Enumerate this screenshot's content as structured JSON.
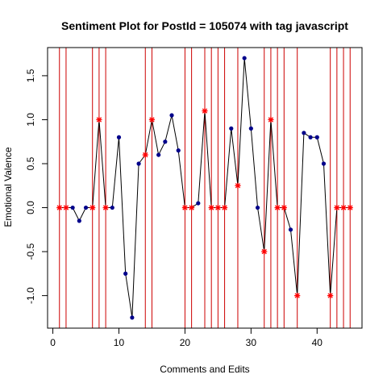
{
  "chart_data": {
    "type": "line",
    "title": "Sentiment Plot for PostId =  105074  with tag  javascript",
    "xlabel": "Comments and Edits",
    "ylabel": "Emotional Valence",
    "xlim": [
      -0.8,
      46.8
    ],
    "ylim": [
      -1.37,
      1.82
    ],
    "xticks": [
      0,
      10,
      20,
      30,
      40
    ],
    "yticks": [
      -1.0,
      -0.5,
      0.0,
      0.5,
      1.0,
      1.5
    ],
    "xtick_labels": [
      "0",
      "10",
      "20",
      "30",
      "40"
    ],
    "ytick_labels": [
      "-1.0",
      "-0.5",
      "0.0",
      "0.5",
      "1.0",
      "1.5"
    ],
    "grid": false,
    "colors": {
      "line": "#000000",
      "comment_point": "#00008b",
      "edit_marker": "#ff0000",
      "edit_line": "#cd0000",
      "axis": "#000000"
    },
    "series": [
      {
        "x": [
          1,
          2,
          3,
          4,
          5,
          6,
          7,
          8,
          9,
          10,
          11,
          12,
          13,
          14,
          15,
          16,
          17,
          18,
          19,
          20,
          21,
          22,
          23,
          24,
          25,
          26,
          27,
          28,
          29,
          30,
          31,
          32,
          33,
          34,
          35,
          36,
          37,
          38,
          39,
          40,
          41,
          42,
          43,
          44,
          45
        ],
        "values": [
          0,
          0,
          0,
          -0.15,
          0,
          0,
          1.0,
          0,
          0,
          0.8,
          -0.75,
          -1.25,
          0.5,
          0.6,
          1.0,
          0.6,
          0.75,
          1.05,
          0.65,
          0,
          0,
          0.05,
          1.1,
          0,
          0,
          0,
          0.9,
          0.25,
          1.7,
          0.9,
          0,
          -0.5,
          1.0,
          0,
          0,
          -0.25,
          -1.0,
          0.85,
          0.8,
          0.8,
          0.5,
          -1.0,
          0,
          0,
          0
        ],
        "edit_flags": [
          1,
          1,
          0,
          0,
          0,
          1,
          1,
          1,
          0,
          0,
          0,
          0,
          0,
          1,
          1,
          0,
          0,
          0,
          0,
          1,
          1,
          0,
          1,
          1,
          1,
          1,
          0,
          1,
          0,
          0,
          0,
          1,
          1,
          1,
          1,
          0,
          1,
          0,
          0,
          0,
          0,
          1,
          1,
          1,
          1
        ]
      }
    ]
  }
}
